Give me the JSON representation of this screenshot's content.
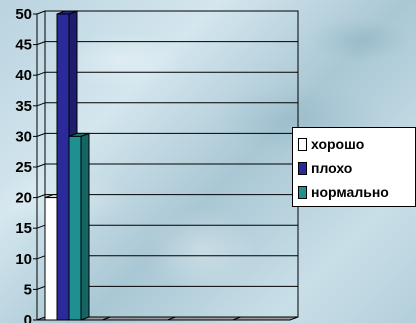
{
  "chart_data": {
    "type": "bar",
    "categories": [
      "",
      "",
      "",
      ""
    ],
    "series": [
      {
        "name": "хорошо",
        "values": [
          20,
          0,
          0,
          0
        ],
        "color": "#ffffff"
      },
      {
        "name": "плохо",
        "values": [
          50,
          0,
          0,
          0
        ],
        "color": "#2a2a9a"
      },
      {
        "name": "нормально",
        "values": [
          30,
          0,
          0,
          0
        ],
        "color": "#1e9090"
      }
    ],
    "ylim": [
      0,
      50
    ],
    "yticks": [
      "0",
      "5",
      "10",
      "15",
      "20",
      "25",
      "30",
      "35",
      "40",
      "45",
      "50"
    ],
    "grid": true,
    "legend_position": "right",
    "three_d": true
  }
}
